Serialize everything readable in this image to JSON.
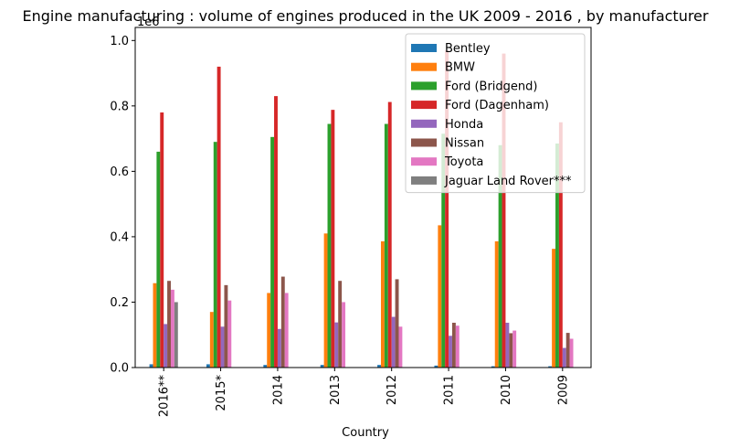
{
  "chart_data": {
    "type": "bar",
    "title": "Engine manufacturing : volume of engines produced in the UK 2009 - 2016 , by manufacturer",
    "xlabel": "Country",
    "ylabel": "",
    "scale_label": "1e6",
    "ylim": [
      0,
      1.04
    ],
    "yticks": [
      0.0,
      0.2,
      0.4,
      0.6,
      0.8,
      1.0
    ],
    "ytick_labels": [
      "0.0",
      "0.2",
      "0.4",
      "0.6",
      "0.8",
      "1.0"
    ],
    "legend_position": "top-right",
    "categories": [
      "2016**",
      "2015*",
      "2014",
      "2013",
      "2012",
      "2011",
      "2010",
      "2009"
    ],
    "series": [
      {
        "name": "Bentley",
        "color": "#1f77b4",
        "values": [
          0.01,
          0.01,
          0.008,
          0.008,
          0.008,
          0.006,
          0.004,
          0.004
        ]
      },
      {
        "name": "BMW",
        "color": "#ff7f0e",
        "values": [
          0.258,
          0.17,
          0.228,
          0.41,
          0.386,
          0.435,
          0.386,
          0.363
        ]
      },
      {
        "name": "Ford (Bridgend)",
        "color": "#2ca02c",
        "values": [
          0.66,
          0.69,
          0.705,
          0.745,
          0.745,
          0.715,
          0.68,
          0.685
        ]
      },
      {
        "name": "Ford (Dagenham)",
        "color": "#d62728",
        "values": [
          0.78,
          0.92,
          0.83,
          0.788,
          0.812,
          0.97,
          0.96,
          0.75
        ]
      },
      {
        "name": "Honda",
        "color": "#9467bd",
        "values": [
          0.133,
          0.125,
          0.118,
          0.138,
          0.155,
          0.097,
          0.137,
          0.06
        ]
      },
      {
        "name": "Nissan",
        "color": "#8c564b",
        "values": [
          0.265,
          0.252,
          0.278,
          0.265,
          0.27,
          0.137,
          0.105,
          0.106
        ]
      },
      {
        "name": "Toyota",
        "color": "#e377c2",
        "values": [
          0.238,
          0.205,
          0.228,
          0.2,
          0.125,
          0.128,
          0.113,
          0.088
        ]
      },
      {
        "name": "Jaguar Land Rover***",
        "color": "#7f7f7f",
        "values": [
          0.2,
          null,
          null,
          null,
          null,
          null,
          null,
          null
        ]
      }
    ]
  }
}
